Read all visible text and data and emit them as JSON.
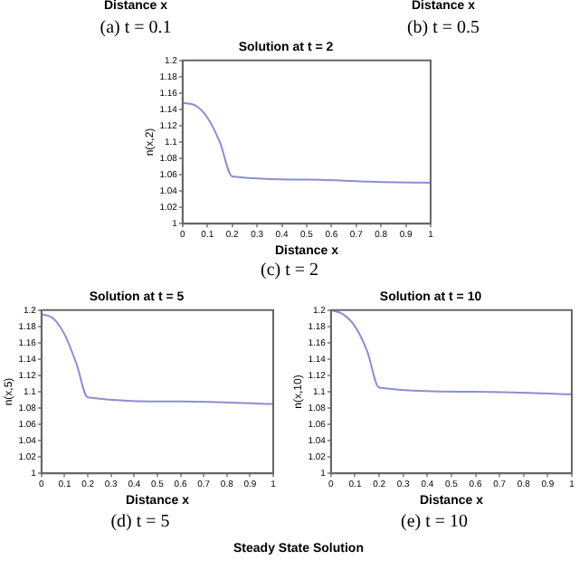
{
  "chart_data": [
    {
      "type": "other",
      "xlabel": "Distance x",
      "annotations": [
        "(a) t = 0.1"
      ]
    },
    {
      "type": "other",
      "xlabel": "Distance x",
      "annotations": [
        "(b) t = 0.5"
      ]
    },
    {
      "type": "line",
      "title": "Solution at t = 2",
      "xlabel": "Distance x",
      "ylabel": "n(x,2)",
      "annotations": [
        "(c) t = 2"
      ],
      "grid": false,
      "legend": false,
      "x": [
        0,
        0.05,
        0.1,
        0.15,
        0.2,
        0.5,
        0.8,
        1
      ],
      "series": [
        {
          "color": "#8a8fd0",
          "values": [
            1.148,
            1.145,
            1.13,
            1.1,
            1.058,
            1.054,
            1.051,
            1.05
          ]
        }
      ],
      "xlim": [
        0,
        1
      ],
      "xticks": [
        0,
        0.1,
        0.2,
        0.3,
        0.4,
        0.5,
        0.6,
        0.7,
        0.8,
        0.9,
        1
      ],
      "ylim": [
        1,
        1.2
      ],
      "yticks": [
        1,
        1.02,
        1.04,
        1.06,
        1.08,
        1.1,
        1.12,
        1.14,
        1.16,
        1.18,
        1.2
      ]
    },
    {
      "type": "line",
      "title": "Solution at t = 5",
      "xlabel": "Distance x",
      "ylabel": "n(x,5)",
      "annotations": [
        "(d) t = 5"
      ],
      "grid": false,
      "legend": false,
      "x": [
        0,
        0.05,
        0.1,
        0.15,
        0.2,
        0.6,
        1
      ],
      "series": [
        {
          "color": "#8a8fd0",
          "values": [
            1.195,
            1.19,
            1.17,
            1.135,
            1.093,
            1.088,
            1.085
          ]
        }
      ],
      "xlim": [
        0,
        1
      ],
      "xticks": [
        0,
        0.1,
        0.2,
        0.3,
        0.4,
        0.5,
        0.6,
        0.7,
        0.8,
        0.9,
        1
      ],
      "ylim": [
        1,
        1.2
      ],
      "yticks": [
        1,
        1.02,
        1.04,
        1.06,
        1.08,
        1.1,
        1.12,
        1.14,
        1.16,
        1.18,
        1.2
      ]
    },
    {
      "type": "line",
      "title": "Solution at t = 10",
      "xlabel": "Distance x",
      "ylabel": "n(x,10)",
      "annotations": [
        "(e) t = 10"
      ],
      "grid": false,
      "legend": false,
      "x": [
        0,
        0.05,
        0.1,
        0.15,
        0.2,
        0.6,
        1
      ],
      "series": [
        {
          "color": "#8a8fd0",
          "values": [
            1.2,
            1.195,
            1.18,
            1.15,
            1.105,
            1.1,
            1.097
          ]
        }
      ],
      "xlim": [
        0,
        1
      ],
      "xticks": [
        0,
        0.1,
        0.2,
        0.3,
        0.4,
        0.5,
        0.6,
        0.7,
        0.8,
        0.9,
        1
      ],
      "ylim": [
        1,
        1.2
      ],
      "yticks": [
        1,
        1.02,
        1.04,
        1.06,
        1.08,
        1.1,
        1.12,
        1.14,
        1.16,
        1.18,
        1.2
      ]
    },
    {
      "type": "other",
      "title": "Steady State Solution"
    }
  ]
}
